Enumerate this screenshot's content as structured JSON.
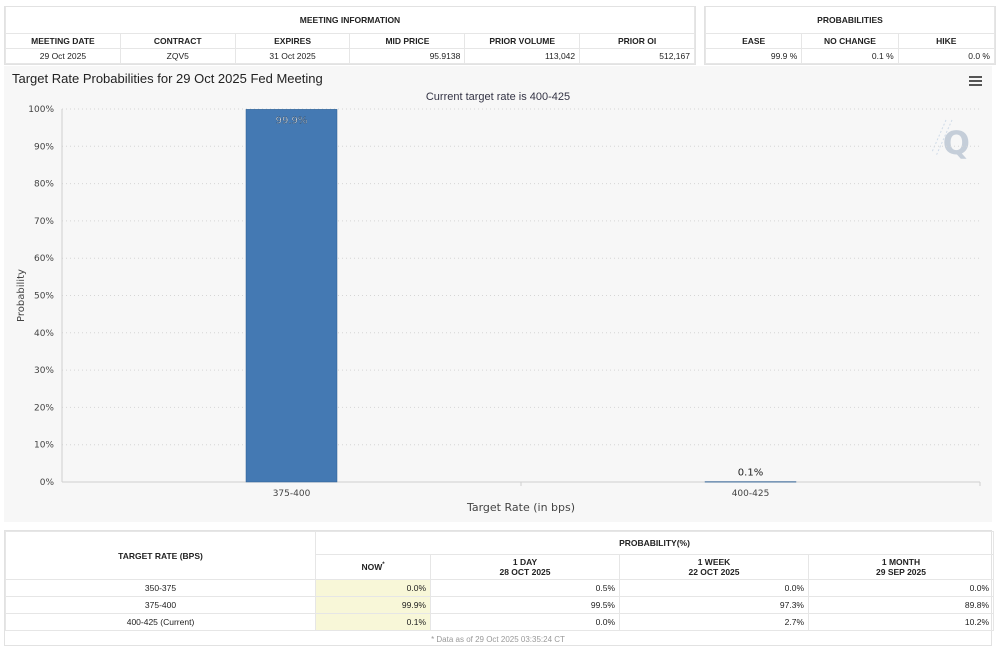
{
  "meeting_table": {
    "group_header": "MEETING INFORMATION",
    "columns": [
      "MEETING DATE",
      "CONTRACT",
      "EXPIRES",
      "MID PRICE",
      "PRIOR VOLUME",
      "PRIOR OI"
    ],
    "row": [
      "29 Oct 2025",
      "ZQV5",
      "31 Oct 2025",
      "95.9138",
      "113,042",
      "512,167"
    ]
  },
  "prob_table": {
    "group_header": "PROBABILITIES",
    "columns": [
      "EASE",
      "NO CHANGE",
      "HIKE"
    ],
    "row": [
      "99.9 %",
      "0.1 %",
      "0.0 %"
    ]
  },
  "chart": {
    "title": "Target Rate Probabilities for 29 Oct 2025 Fed Meeting",
    "subtitle": "Current target rate is 400-425",
    "menu_icon": "hamburger-menu-icon",
    "bar_color": "#4479b3"
  },
  "chart_data": {
    "type": "bar",
    "categories": [
      "375-400",
      "400-425"
    ],
    "values": [
      99.9,
      0.1
    ],
    "data_labels": [
      "99.9%",
      "0.1%"
    ],
    "title": "Target Rate Probabilities for 29 Oct 2025 Fed Meeting",
    "subtitle": "Current target rate is 400-425",
    "xlabel": "Target Rate (in bps)",
    "ylabel": "Probability",
    "ylim": [
      0,
      100
    ],
    "yticks": [
      "0%",
      "10%",
      "20%",
      "30%",
      "40%",
      "50%",
      "60%",
      "70%",
      "80%",
      "90%",
      "100%"
    ],
    "grid": true,
    "legend": "none"
  },
  "history_table": {
    "rate_header": "TARGET RATE (BPS)",
    "prob_header": "PROBABILITY(%)",
    "cols": [
      {
        "label": "NOW",
        "sub": "",
        "sup": "*"
      },
      {
        "label": "1 DAY",
        "sub": "28 OCT 2025",
        "sup": ""
      },
      {
        "label": "1 WEEK",
        "sub": "22 OCT 2025",
        "sup": ""
      },
      {
        "label": "1 MONTH",
        "sub": "29 SEP 2025",
        "sup": ""
      }
    ],
    "rows": [
      {
        "rate": "350-375",
        "values": [
          "0.0%",
          "0.5%",
          "0.0%",
          "0.0%"
        ]
      },
      {
        "rate": "375-400",
        "values": [
          "99.9%",
          "99.5%",
          "97.3%",
          "89.8%"
        ]
      },
      {
        "rate": "400-425 (Current)",
        "values": [
          "0.1%",
          "0.0%",
          "2.7%",
          "10.2%"
        ]
      }
    ],
    "note": "* Data as of 29 Oct 2025 03:35:24 CT",
    "now_highlight": "#f8f7d8"
  }
}
